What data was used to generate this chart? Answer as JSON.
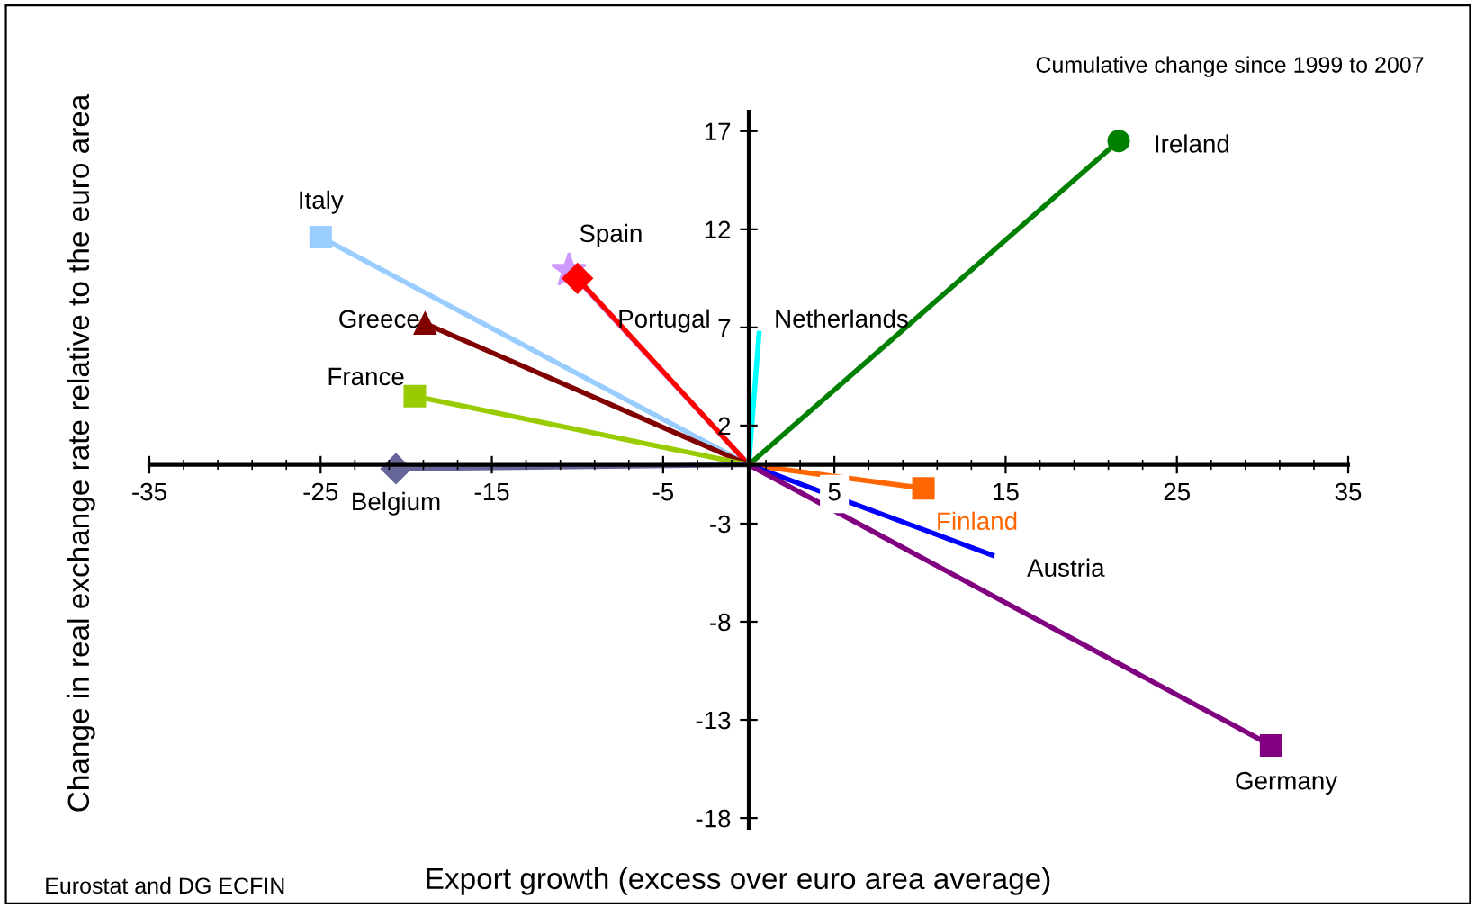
{
  "chart_data": {
    "type": "line",
    "xlabel": "Export growth (excess over euro area average)",
    "ylabel": "Change in real exchange rate relative to the euro area",
    "annotations": [
      "Cumulative change since 1999 to 2007",
      "Eurostat and DG ECFIN"
    ],
    "xlim": [
      -35,
      35
    ],
    "xticks": [
      -35,
      -25,
      -15,
      -5,
      5,
      15,
      25,
      35
    ],
    "ylim": [
      -18.5,
      18
    ],
    "yticks": [
      -18,
      -13,
      -8,
      -3,
      2,
      7,
      12,
      17
    ],
    "grid": false,
    "legend": false,
    "line_style": "solid",
    "series": [
      {
        "name": "Italy",
        "color": "#99ccff",
        "marker": "square",
        "x": [
          0,
          -25.0
        ],
        "values": [
          0,
          11.6
        ]
      },
      {
        "name": "Spain",
        "color": "#cc99ff",
        "marker": "star",
        "x": [
          0,
          -10.5
        ],
        "values": [
          0,
          9.9
        ]
      },
      {
        "name": "Portugal",
        "color": "#ff0000",
        "marker": "diamond",
        "x": [
          0,
          -10.0
        ],
        "values": [
          0,
          9.5
        ]
      },
      {
        "name": "Greece",
        "color": "#800000",
        "marker": "triangle",
        "x": [
          0,
          -18.9
        ],
        "values": [
          0,
          7.2
        ]
      },
      {
        "name": "France",
        "color": "#99cc00",
        "marker": "square",
        "x": [
          0,
          -19.5
        ],
        "values": [
          0,
          3.5
        ]
      },
      {
        "name": "Belgium",
        "color": "#666699",
        "marker": "diamond",
        "x": [
          0,
          -20.6
        ],
        "values": [
          0,
          -0.2
        ]
      },
      {
        "name": "Netherlands",
        "color": "#00ffff",
        "marker": "none",
        "x": [
          0,
          0.6
        ],
        "values": [
          0,
          6.7
        ]
      },
      {
        "name": "Ireland",
        "color": "#008000",
        "marker": "circle",
        "x": [
          0,
          21.6
        ],
        "values": [
          0,
          16.5
        ]
      },
      {
        "name": "Finland",
        "color": "#ff6600",
        "marker": "square",
        "x": [
          0,
          10.2
        ],
        "values": [
          0,
          -1.2
        ]
      },
      {
        "name": "Austria",
        "color": "#0000ff",
        "marker": "none",
        "x": [
          0,
          14.2
        ],
        "values": [
          0,
          -4.6
        ]
      },
      {
        "name": "Germany",
        "color": "#800080",
        "marker": "square",
        "x": [
          0,
          30.5
        ],
        "values": [
          0,
          -14.3
        ]
      }
    ]
  }
}
